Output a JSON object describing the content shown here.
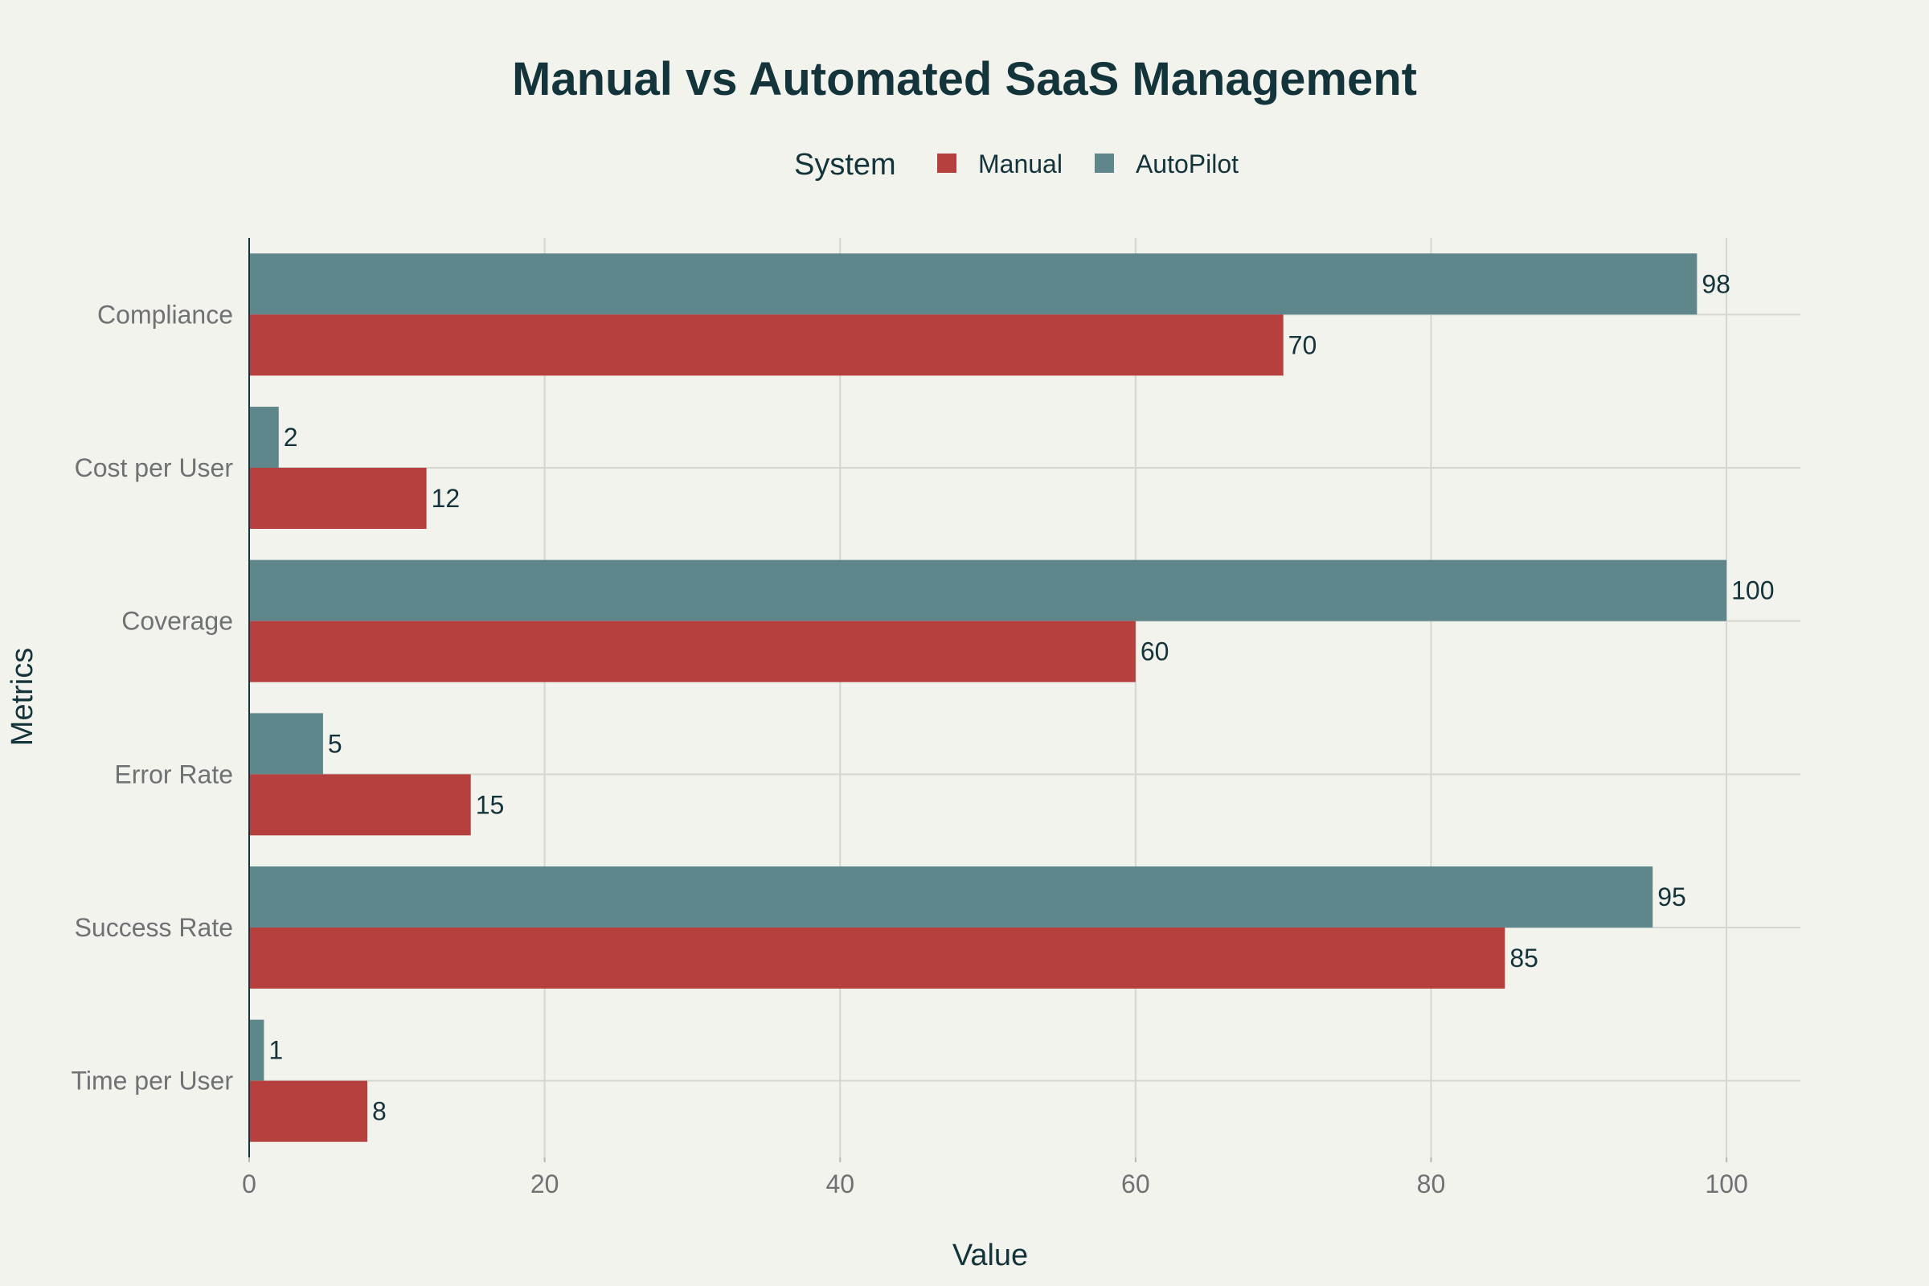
{
  "chart_data": {
    "type": "bar",
    "orientation": "horizontal",
    "title": "Manual vs Automated SaaS Management",
    "xlabel": "Value",
    "ylabel": "Metrics",
    "legend_title": "System",
    "legend_placement": "top-center",
    "grid": true,
    "xlim": [
      0,
      105
    ],
    "x_ticks": [
      0,
      20,
      40,
      60,
      80,
      100
    ],
    "categories": [
      "Compliance",
      "Cost per User",
      "Coverage",
      "Error Rate",
      "Success Rate",
      "Time per User"
    ],
    "series": [
      {
        "name": "Manual",
        "color": "#b5403e",
        "values": [
          70,
          12,
          60,
          15,
          85,
          8
        ]
      },
      {
        "name": "AutoPilot",
        "color": "#5e868b",
        "values": [
          98,
          2,
          100,
          5,
          95,
          1
        ]
      }
    ]
  }
}
